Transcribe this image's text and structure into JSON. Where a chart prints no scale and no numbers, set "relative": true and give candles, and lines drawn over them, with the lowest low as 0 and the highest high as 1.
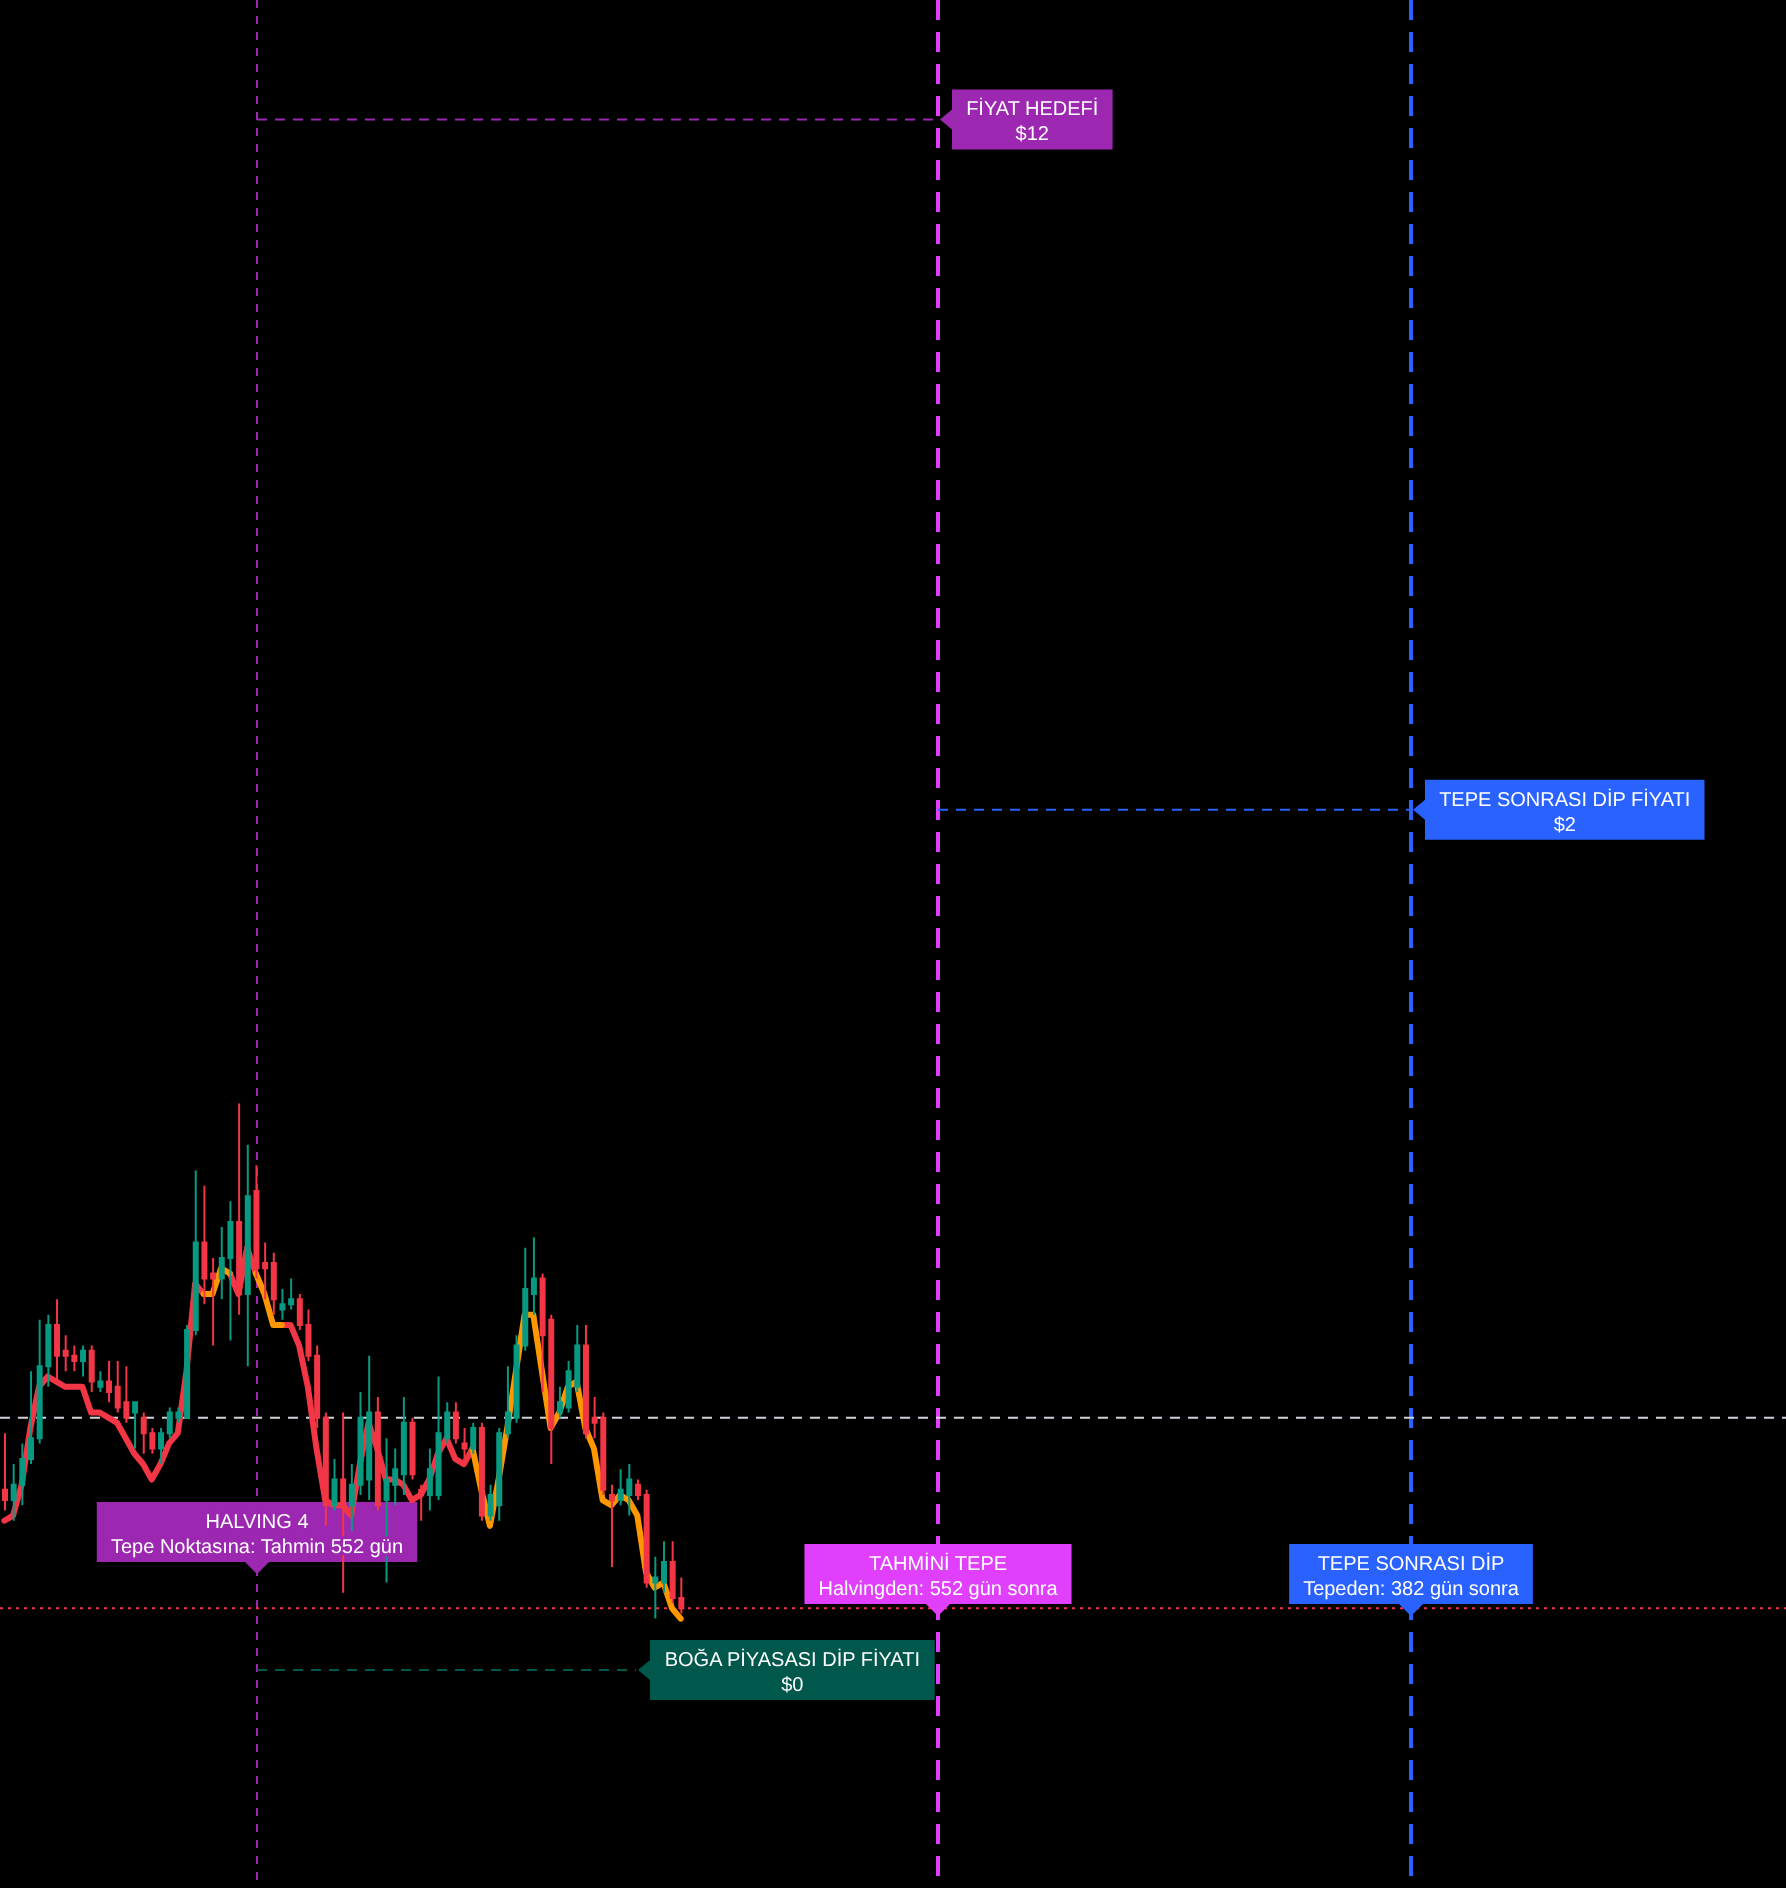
{
  "chart_data": {
    "type": "candlestick",
    "relative": true,
    "tick_labels": false,
    "categories": [
      null,
      null,
      null,
      null,
      null,
      null,
      null,
      null,
      null,
      null,
      null,
      null,
      null,
      null,
      null,
      null,
      null,
      null,
      null,
      null,
      null,
      null,
      null,
      null,
      null,
      null,
      null,
      null,
      null,
      null,
      null,
      null,
      null,
      null,
      null,
      null,
      null,
      null,
      null,
      null,
      null,
      null,
      null,
      null,
      null,
      null,
      null,
      null,
      null,
      null,
      null,
      null,
      null,
      null,
      null,
      null,
      null,
      null,
      null,
      null,
      null,
      null,
      null,
      null,
      null,
      null,
      null,
      null,
      null,
      null,
      null,
      null,
      null,
      null,
      null,
      null,
      null,
      null,
      null
    ],
    "ohlc": [
      [
        0.25,
        0.36,
        0.21,
        0.23
      ],
      [
        0.23,
        0.3,
        0.19,
        0.26
      ],
      [
        0.26,
        0.34,
        0.22,
        0.31
      ],
      [
        0.31,
        0.48,
        0.3,
        0.35
      ],
      [
        0.35,
        0.58,
        0.34,
        0.49
      ],
      [
        0.49,
        0.59,
        0.45,
        0.57
      ],
      [
        0.57,
        0.62,
        0.46,
        0.51
      ],
      [
        0.52,
        0.55,
        0.48,
        0.51
      ],
      [
        0.51,
        0.53,
        0.48,
        0.5
      ],
      [
        0.5,
        0.53,
        0.47,
        0.52
      ],
      [
        0.52,
        0.53,
        0.44,
        0.46
      ],
      [
        0.45,
        0.48,
        0.44,
        0.46
      ],
      [
        0.46,
        0.5,
        0.42,
        0.44
      ],
      [
        0.45,
        0.5,
        0.4,
        0.41
      ],
      [
        0.42,
        0.49,
        0.38,
        0.39
      ],
      [
        0.4,
        0.42,
        0.33,
        0.42
      ],
      [
        0.39,
        0.4,
        0.32,
        0.36
      ],
      [
        0.36,
        0.37,
        0.32,
        0.33
      ],
      [
        0.33,
        0.37,
        0.3,
        0.36
      ],
      [
        0.36,
        0.41,
        0.35,
        0.4
      ],
      [
        0.39,
        0.41,
        0.38,
        0.4
      ],
      [
        0.39,
        0.57,
        0.39,
        0.56
      ],
      [
        0.56,
        0.87,
        0.55,
        0.73
      ],
      [
        0.73,
        0.84,
        0.61,
        0.66
      ],
      [
        0.67,
        0.7,
        0.53,
        0.66
      ],
      [
        0.66,
        0.76,
        0.62,
        0.7
      ],
      [
        0.7,
        0.81,
        0.54,
        0.77
      ],
      [
        0.77,
        1,
        0.59,
        0.63
      ],
      [
        0.63,
        0.92,
        0.49,
        0.82
      ],
      [
        0.83,
        0.88,
        0.66,
        0.68
      ],
      [
        0.69,
        0.73,
        0.62,
        0.68
      ],
      [
        0.69,
        0.71,
        0.59,
        0.62
      ],
      [
        0.6,
        0.64,
        0.58,
        0.61
      ],
      [
        0.61,
        0.66,
        0.6,
        0.62
      ],
      [
        0.62,
        0.63,
        0.56,
        0.57
      ],
      [
        0.57,
        0.6,
        0.5,
        0.51
      ],
      [
        0.51,
        0.53,
        0.37,
        0.39
      ],
      [
        0.39,
        0.4,
        0.18,
        0.22
      ],
      [
        0.22,
        0.31,
        0.21,
        0.27
      ],
      [
        0.27,
        0.4,
        0.05,
        0.22
      ],
      [
        0.22,
        0.3,
        0.17,
        0.26
      ],
      [
        0.26,
        0.44,
        0.24,
        0.39
      ],
      [
        0.27,
        0.51,
        0.23,
        0.4
      ],
      [
        0.4,
        0.43,
        0.21,
        0.22
      ],
      [
        0.23,
        0.35,
        0.07,
        0.27
      ],
      [
        0.26,
        0.33,
        0.22,
        0.29
      ],
      [
        0.28,
        0.43,
        0.24,
        0.38
      ],
      [
        0.38,
        0.39,
        0.27,
        0.28
      ],
      [
        0.25,
        0.26,
        0.19,
        0.24
      ],
      [
        0.24,
        0.33,
        0.21,
        0.29
      ],
      [
        0.24,
        0.47,
        0.23,
        0.36
      ],
      [
        0.35,
        0.42,
        0.34,
        0.4
      ],
      [
        0.4,
        0.42,
        0.34,
        0.35
      ],
      [
        0.34,
        0.37,
        0.3,
        0.33
      ],
      [
        0.33,
        0.38,
        0.32,
        0.37
      ],
      [
        0.37,
        0.38,
        0.19,
        0.2
      ],
      [
        0.2,
        0.26,
        0.19,
        0.24
      ],
      [
        0.22,
        0.37,
        0.19,
        0.36
      ],
      [
        0.36,
        0.49,
        0.35,
        0.4
      ],
      [
        0.39,
        0.55,
        0.38,
        0.53
      ],
      [
        0.53,
        0.72,
        0.52,
        0.64
      ],
      [
        0.63,
        0.74,
        0.59,
        0.66
      ],
      [
        0.66,
        0.67,
        0.44,
        0.55
      ],
      [
        0.58,
        0.59,
        0.3,
        0.37
      ],
      [
        0.4,
        0.45,
        0.39,
        0.42
      ],
      [
        0.41,
        0.5,
        0.4,
        0.48
      ],
      [
        0.45,
        0.57,
        0.44,
        0.53
      ],
      [
        0.53,
        0.57,
        0.35,
        0.36
      ],
      [
        0.39,
        0.43,
        0.35,
        0.38
      ],
      [
        0.39,
        0.4,
        0.24,
        0.25
      ],
      [
        0.24,
        0.26,
        0.1,
        0.23
      ],
      [
        0.23,
        0.29,
        0.22,
        0.25
      ],
      [
        0.24,
        0.3,
        0.2,
        0.27
      ],
      [
        0.26,
        0.27,
        0.23,
        0.24
      ],
      [
        0.24,
        0.25,
        0.06,
        0.07
      ],
      [
        0.07,
        0.12,
        0,
        0.08
      ],
      [
        0.07,
        0.15,
        0.05,
        0.11
      ],
      [
        0.11,
        0.15,
        0.03,
        0.04
      ],
      [
        0.04,
        0.08,
        0.01,
        0.02
      ]
    ],
    "colors": [
      "#f23645",
      "#089981",
      "#089981",
      "#089981",
      "#089981",
      "#089981",
      "#f23645",
      "#f23645",
      "#f23645",
      "#089981",
      "#f23645",
      "#089981",
      "#f23645",
      "#f23645",
      "#f23645",
      "#089981",
      "#f23645",
      "#f23645",
      "#089981",
      "#089981",
      "#089981",
      "#089981",
      "#089981",
      "#f23645",
      "#f23645",
      "#089981",
      "#089981",
      "#f23645",
      "#089981",
      "#f23645",
      "#f23645",
      "#f23645",
      "#089981",
      "#089981",
      "#f23645",
      "#f23645",
      "#f23645",
      "#f23645",
      "#089981",
      "#f23645",
      "#089981",
      "#089981",
      "#089981",
      "#f23645",
      "#089981",
      "#089981",
      "#089981",
      "#f23645",
      "#f23645",
      "#089981",
      "#089981",
      "#089981",
      "#f23645",
      "#f23645",
      "#089981",
      "#f23645",
      "#089981",
      "#089981",
      "#089981",
      "#089981",
      "#089981",
      "#089981",
      "#f23645",
      "#f23645",
      "#089981",
      "#089981",
      "#089981",
      "#f23645",
      "#f23645",
      "#f23645",
      "#f23645",
      "#089981",
      "#089981",
      "#f23645",
      "#f23645",
      "#089981",
      "#089981",
      "#f23645",
      "#f23645"
    ],
    "series": [
      {
        "type": "line",
        "color": "#f23645",
        "values": [
          0.19,
          0.2,
          0.26,
          0.37,
          0.45,
          0.47,
          0.46,
          0.45,
          0.45,
          0.45,
          0.4,
          0.4,
          0.39,
          0.38,
          0.35,
          0.32,
          0.3,
          0.27,
          0.3,
          0.34,
          0.36,
          0.48,
          0.65,
          0.63,
          null,
          null,
          0.67,
          0.63,
          0.72,
          0.67,
          null,
          null,
          0.57,
          0.57,
          0.53,
          0.45,
          0.33,
          0.23,
          0.22,
          0.22,
          0.2,
          0.3,
          0.38,
          0.33,
          0.27,
          0.27,
          0.26,
          0.23,
          0.24,
          0.27,
          0.32,
          0.35,
          0.31,
          0.3,
          0.33,
          null,
          null,
          null,
          null,
          null,
          null,
          null,
          null,
          null,
          null,
          null,
          null,
          null,
          null,
          null,
          null,
          null,
          null,
          null,
          null,
          null,
          null,
          null,
          null
        ]
      },
      {
        "type": "line",
        "color": "#ff9800",
        "values": [
          null,
          null,
          null,
          null,
          null,
          null,
          null,
          null,
          null,
          null,
          null,
          null,
          null,
          null,
          null,
          null,
          null,
          null,
          null,
          null,
          null,
          null,
          null,
          0.63,
          0.63,
          0.68,
          0.67,
          null,
          null,
          0.67,
          0.63,
          0.57,
          0.57,
          null,
          null,
          null,
          null,
          null,
          null,
          null,
          null,
          null,
          null,
          null,
          null,
          null,
          null,
          null,
          null,
          null,
          null,
          null,
          null,
          null,
          0.33,
          0.25,
          0.18,
          0.27,
          0.37,
          0.48,
          0.59,
          0.59,
          0.48,
          0.37,
          0.4,
          0.45,
          0.46,
          0.37,
          0.33,
          0.23,
          0.22,
          0.24,
          0.23,
          0.2,
          0.09,
          0.06,
          0.07,
          0.02,
          0.0
        ]
      }
    ],
    "ref_lines": [
      {
        "axis": "y",
        "value": 2.91,
        "label": "FİYAT HEDEFİ\n$12",
        "color": "#9c27b0",
        "line_style": "dashed"
      },
      {
        "axis": "y",
        "value": 1.57,
        "label": "TEPE SONRASI DİP FİYATI\n$2",
        "color": "#2962ff",
        "line_style": "dashed"
      },
      {
        "axis": "y",
        "value": -0.1,
        "label": "BOĞA PİYASASI DİP FİYATI\n$0",
        "color": "#00574b",
        "line_style": "dashed"
      },
      {
        "axis": "y",
        "value": 0.39,
        "color": "#d1d4dc",
        "line_style": "dashed"
      },
      {
        "axis": "y",
        "value": 0.02,
        "color": "#f23645",
        "line_style": "dotted"
      }
    ],
    "annotations": [
      "HALVING 4\nTepe Noktasına: Tahmin 552 gün",
      "TAHMİNİ TEPE\nHalvingden: 552 gün sonra",
      "TEPE SONRASI DİP\nTepeden: 382 gün sonra"
    ]
  }
}
